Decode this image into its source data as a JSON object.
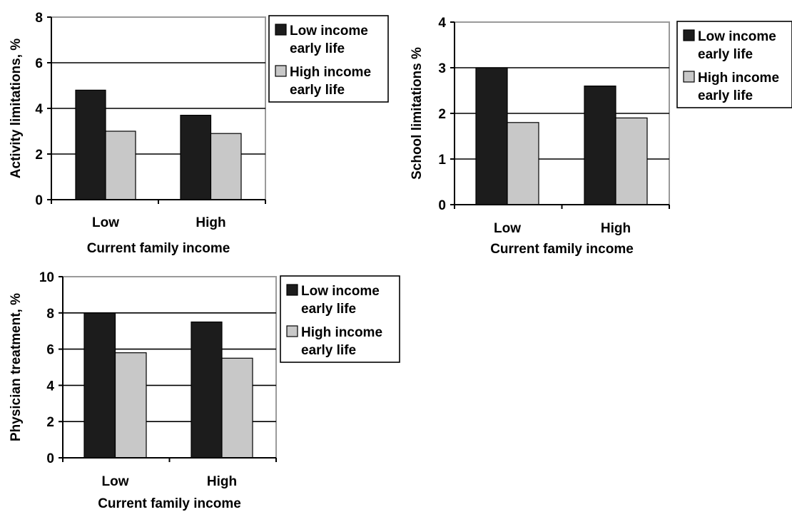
{
  "colors": {
    "low_income_early_life": "#1c1c1c",
    "high_income_early_life": "#c8c8c8",
    "plot_border": "#9a9a9a",
    "gridline": "#000000"
  },
  "chart_data": [
    {
      "type": "bar",
      "categories": [
        "Low",
        "High"
      ],
      "series": [
        {
          "name": "Low income early life",
          "legend_lines": [
            "Low income",
            "early life"
          ],
          "values": [
            4.8,
            3.7
          ]
        },
        {
          "name": "High income early life",
          "legend_lines": [
            "High income",
            "early life"
          ],
          "values": [
            3.0,
            2.9
          ]
        }
      ],
      "xlabel": "Current family income",
      "ylabel": "Activity limitations, %",
      "ylim": [
        0,
        8
      ],
      "yticks": [
        0,
        2,
        4,
        6,
        8
      ],
      "grid": true,
      "legend": "right"
    },
    {
      "type": "bar",
      "categories": [
        "Low",
        "High"
      ],
      "series": [
        {
          "name": "Low income early life",
          "legend_lines": [
            "Low income",
            "early life"
          ],
          "values": [
            3.0,
            2.6
          ]
        },
        {
          "name": "High income early life",
          "legend_lines": [
            "High income",
            "early life"
          ],
          "values": [
            1.8,
            1.9
          ]
        }
      ],
      "xlabel": "Current family income",
      "ylabel": "School limitations %",
      "ylim": [
        0,
        4
      ],
      "yticks": [
        0,
        1,
        2,
        3,
        4
      ],
      "grid": true,
      "legend": "right"
    },
    {
      "type": "bar",
      "categories": [
        "Low",
        "High"
      ],
      "series": [
        {
          "name": "Low income early life",
          "legend_lines": [
            "Low income",
            "early life"
          ],
          "values": [
            8.0,
            7.5
          ]
        },
        {
          "name": "High income early life",
          "legend_lines": [
            "High income",
            "early life"
          ],
          "values": [
            5.8,
            5.5
          ]
        }
      ],
      "xlabel": "Current family income",
      "ylabel": "Physician treatment, %",
      "ylim": [
        0,
        10
      ],
      "yticks": [
        0,
        2,
        4,
        6,
        8,
        10
      ],
      "grid": true,
      "legend": "right"
    }
  ]
}
